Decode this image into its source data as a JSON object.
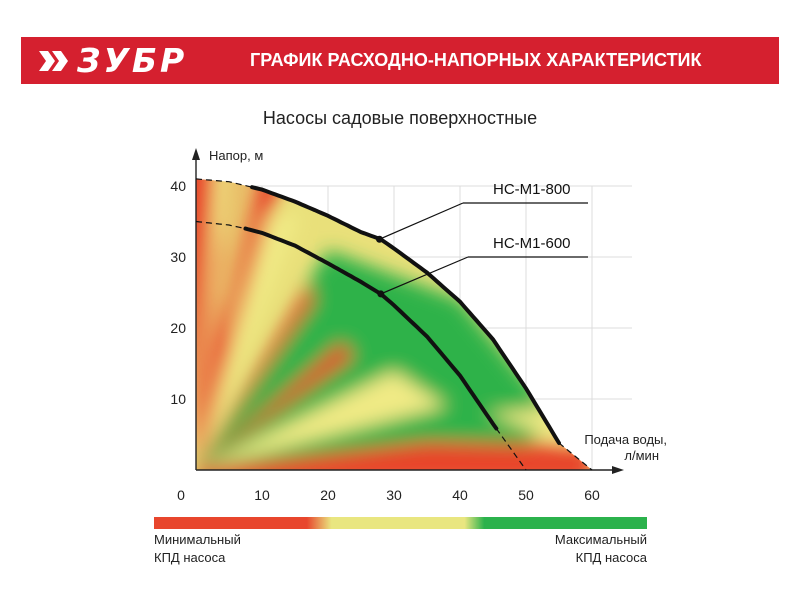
{
  "header": {
    "brand": "ЗУБР",
    "title": "ГРАФИК РАСХОДНО-НАПОРНЫХ ХАРАКТЕРИСТИК",
    "brand_color": "#d5202f"
  },
  "chart_data": {
    "type": "line",
    "title": "Насосы садовые поверхностные",
    "xlabel": "Подача воды, л/мин",
    "ylabel": "Напор, м",
    "xlim": [
      0,
      60
    ],
    "ylim": [
      0,
      40
    ],
    "x_ticks": [
      "0",
      "10",
      "20",
      "30",
      "40",
      "50",
      "60"
    ],
    "y_ticks": [
      "10",
      "20",
      "30",
      "40"
    ],
    "grid": true,
    "series": [
      {
        "name": "НС-М1-800",
        "x": [
          0,
          5,
          10,
          15,
          20,
          25,
          28,
          30,
          35,
          40,
          45,
          50,
          55,
          60
        ],
        "y": [
          41,
          40.6,
          39.5,
          37.8,
          35.8,
          33.5,
          32.5,
          31.2,
          27.8,
          23.7,
          18.4,
          11.5,
          3.8,
          0
        ],
        "solid_range": [
          8.5,
          55
        ]
      },
      {
        "name": "НС-М1-600",
        "x": [
          0,
          5,
          7.5,
          10,
          15,
          20,
          25,
          28,
          30,
          35,
          40,
          45,
          50
        ],
        "y": [
          35,
          34.5,
          34,
          33.4,
          31.6,
          29.1,
          26.5,
          24.8,
          23.2,
          18.8,
          13.3,
          6.5,
          0
        ],
        "solid_range": [
          7.5,
          45.5
        ]
      }
    ],
    "annotations": [
      {
        "text": "НС-М1-800",
        "x": 27.8,
        "y": 32.5
      },
      {
        "text": "НС-М1-600",
        "x": 28,
        "y": 24.8
      }
    ],
    "efficiency_scale": {
      "min_label": "Минимальный КПД насоса",
      "max_label": "Максимальный КПД насоса",
      "colors": [
        "#e8462d",
        "#e9e680",
        "#2bb24c"
      ]
    }
  },
  "legend": {
    "left_line1": "Минимальный",
    "left_line2": "КПД насоса",
    "right_line1": "Максимальный",
    "right_line2": "КПД насоса"
  }
}
